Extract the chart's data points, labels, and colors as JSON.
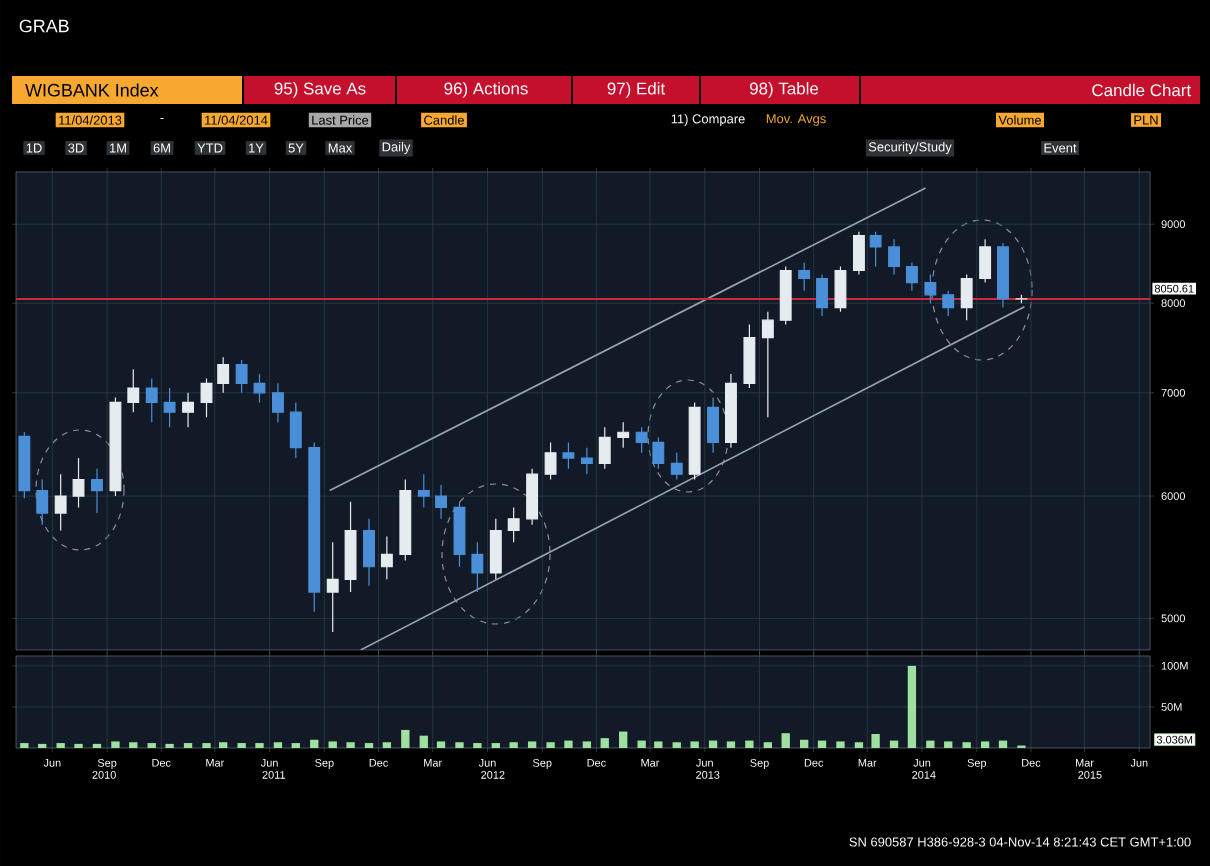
{
  "chart_data": [
    {
      "type": "candlestick",
      "title": "WIGBANK Index",
      "annotations": [
        "GRAB",
        "95) Save As",
        "96) Actions",
        "97) Edit",
        "98) Table",
        "Candle Chart",
        "11/04/2013",
        "-",
        "11/04/2014",
        "Last Price",
        "Candle",
        "11) Compare",
        "Mov. Avgs",
        "Volume",
        "PLN",
        "1D",
        "3D",
        "1M",
        "6M",
        "YTD",
        "1Y",
        "5Y",
        "Max",
        "Daily",
        "Security/Study",
        "Event",
        "SN 690587 H386-928-3 04-Nov-14  8:21:43 CET  GMT+1:00"
      ],
      "x": [
        "2010-04-15",
        "2010-05-15",
        "2010-06-15",
        "2010-07-15",
        "2010-08-15",
        "2010-09-15",
        "2010-10-15",
        "2010-11-15",
        "2010-12-15",
        "2011-01-15",
        "2011-02-15",
        "2011-03-15",
        "2011-04-15",
        "2011-05-15",
        "2011-06-15",
        "2011-07-15",
        "2011-08-15",
        "2011-09-15",
        "2011-10-15",
        "2011-11-15",
        "2011-12-15",
        "2012-01-15",
        "2012-02-15",
        "2012-03-15",
        "2012-04-15",
        "2012-05-15",
        "2012-06-15",
        "2012-07-15",
        "2012-08-15",
        "2012-09-15",
        "2012-10-15",
        "2012-11-15",
        "2012-12-15",
        "2013-01-15",
        "2013-02-15",
        "2013-03-15",
        "2013-04-15",
        "2013-05-15",
        "2013-06-15",
        "2013-07-15",
        "2013-08-15",
        "2013-09-15",
        "2013-10-15",
        "2013-11-15",
        "2013-12-15",
        "2014-01-15",
        "2014-02-15",
        "2014-03-15",
        "2014-04-15",
        "2014-05-15",
        "2014-06-15",
        "2014-07-15",
        "2014-08-15",
        "2014-09-15",
        "2014-10-15",
        "2014-11-15"
      ],
      "ohlc": [
        [
          6560,
          6600,
          5980,
          6050
        ],
        [
          6050,
          6150,
          5750,
          5850
        ],
        [
          5850,
          6200,
          5700,
          6000
        ],
        [
          6000,
          6350,
          5900,
          6150
        ],
        [
          6150,
          6250,
          5850,
          6050
        ],
        [
          6050,
          6950,
          6000,
          6900
        ],
        [
          6900,
          7250,
          6800,
          7050
        ],
        [
          7050,
          7150,
          6700,
          6900
        ],
        [
          6900,
          7050,
          6650,
          6800
        ],
        [
          6800,
          7000,
          6650,
          6900
        ],
        [
          6900,
          7150,
          6750,
          7100
        ],
        [
          7100,
          7380,
          7000,
          7300
        ],
        [
          7300,
          7350,
          7000,
          7100
        ],
        [
          7100,
          7200,
          6900,
          7000
        ],
        [
          7000,
          7100,
          6700,
          6800
        ],
        [
          6800,
          6900,
          6350,
          6450
        ],
        [
          6450,
          6500,
          5050,
          5200
        ],
        [
          5200,
          5600,
          4900,
          5300
        ],
        [
          5300,
          5950,
          5200,
          5700
        ],
        [
          5700,
          5800,
          5250,
          5400
        ],
        [
          5400,
          5650,
          5300,
          5500
        ],
        [
          5500,
          6150,
          5450,
          6050
        ],
        [
          6050,
          6200,
          5900,
          6000
        ],
        [
          6000,
          6100,
          5800,
          5900
        ],
        [
          5900,
          5950,
          5400,
          5500
        ],
        [
          5500,
          5600,
          5200,
          5350
        ],
        [
          5350,
          5800,
          5300,
          5700
        ],
        [
          5700,
          5900,
          5600,
          5800
        ],
        [
          5800,
          6250,
          5750,
          6200
        ],
        [
          6200,
          6500,
          6150,
          6400
        ],
        [
          6400,
          6500,
          6250,
          6350
        ],
        [
          6350,
          6450,
          6200,
          6300
        ],
        [
          6300,
          6650,
          6250,
          6550
        ],
        [
          6550,
          6700,
          6450,
          6600
        ],
        [
          6600,
          6650,
          6400,
          6500
        ],
        [
          6500,
          6550,
          6250,
          6300
        ],
        [
          6300,
          6400,
          6150,
          6200
        ],
        [
          6200,
          6900,
          6150,
          6850
        ],
        [
          6850,
          6950,
          6400,
          6500
        ],
        [
          6500,
          7200,
          6450,
          7100
        ],
        [
          7100,
          7750,
          7050,
          7600
        ],
        [
          7600,
          7900,
          6750,
          7800
        ],
        [
          7800,
          8450,
          7750,
          8400
        ],
        [
          8400,
          8500,
          8150,
          8300
        ],
        [
          8300,
          8350,
          7850,
          7950
        ],
        [
          7950,
          8450,
          7900,
          8400
        ],
        [
          8400,
          8900,
          8350,
          8850
        ],
        [
          8850,
          8900,
          8450,
          8700
        ],
        [
          8700,
          8800,
          8350,
          8450
        ],
        [
          8450,
          8500,
          8150,
          8250
        ],
        [
          8250,
          8350,
          8000,
          8100
        ],
        [
          8100,
          8150,
          7850,
          7950
        ],
        [
          7950,
          8350,
          7800,
          8300
        ],
        [
          8300,
          8800,
          8250,
          8700
        ],
        [
          8700,
          8750,
          7950,
          8050
        ],
        [
          8050,
          8100,
          8000,
          8050.61
        ]
      ],
      "colors": [
        "#4a8fd8",
        "#4a8fd8",
        "#e6ebf0",
        "#e6ebf0",
        "#4a8fd8",
        "#e6ebf0",
        "#e6ebf0",
        "#4a8fd8",
        "#4a8fd8",
        "#e6ebf0",
        "#e6ebf0",
        "#e6ebf0",
        "#4a8fd8",
        "#4a8fd8",
        "#4a8fd8",
        "#4a8fd8",
        "#4a8fd8",
        "#e6ebf0",
        "#e6ebf0",
        "#4a8fd8",
        "#e6ebf0",
        "#e6ebf0",
        "#4a8fd8",
        "#4a8fd8",
        "#4a8fd8",
        "#4a8fd8",
        "#e6ebf0",
        "#e6ebf0",
        "#e6ebf0",
        "#e6ebf0",
        "#4a8fd8",
        "#4a8fd8",
        "#e6ebf0",
        "#e6ebf0",
        "#4a8fd8",
        "#4a8fd8",
        "#4a8fd8",
        "#e6ebf0",
        "#4a8fd8",
        "#e6ebf0",
        "#e6ebf0",
        "#e6ebf0",
        "#e6ebf0",
        "#4a8fd8",
        "#4a8fd8",
        "#e6ebf0",
        "#e6ebf0",
        "#4a8fd8",
        "#4a8fd8",
        "#4a8fd8",
        "#4a8fd8",
        "#4a8fd8",
        "#e6ebf0",
        "#e6ebf0",
        "#4a8fd8",
        "#e6ebf0"
      ],
      "series": [
        {
          "type": "line",
          "color": "#9aa3ad",
          "x": [
            "2011-09-10",
            "2014-06-07"
          ],
          "values": [
            6050,
            9500
          ]
        },
        {
          "type": "line",
          "color": "#9aa3ad",
          "x": [
            "2011-11-01",
            "2014-11-20"
          ],
          "values": [
            4770,
            7960
          ]
        }
      ],
      "ref_lines": [
        {
          "axis": "y",
          "value": 8050.61,
          "label": "8050.61",
          "color": "#d0283c"
        }
      ],
      "log": true,
      "grid": true,
      "tick_labels": "y",
      "xlim": [
        "2010-04-01",
        "2015-06-19"
      ],
      "ylim": [
        4770,
        9730
      ],
      "xticks": [
        {
          "value": "2010-06-01",
          "label": null
        },
        {
          "value": "2010-09-01",
          "label": null
        },
        {
          "value": "2010-12-01",
          "label": null
        },
        {
          "value": "2011-03-01",
          "label": null
        },
        {
          "value": "2011-06-01",
          "label": null
        },
        {
          "value": "2011-09-01",
          "label": null
        },
        {
          "value": "2011-12-01",
          "label": null
        },
        {
          "value": "2012-03-01",
          "label": null
        },
        {
          "value": "2012-06-01",
          "label": null
        },
        {
          "value": "2012-09-01",
          "label": null
        },
        {
          "value": "2012-12-01",
          "label": null
        },
        {
          "value": "2013-03-01",
          "label": null
        },
        {
          "value": "2013-06-01",
          "label": null
        },
        {
          "value": "2013-09-01",
          "label": null
        },
        {
          "value": "2013-12-01",
          "label": null
        },
        {
          "value": "2014-03-01",
          "label": null
        },
        {
          "value": "2014-06-01",
          "label": null
        },
        {
          "value": "2014-09-01",
          "label": null
        },
        {
          "value": "2014-12-01",
          "label": null
        },
        {
          "value": "2015-03-01",
          "label": null
        },
        {
          "value": "2015-06-01",
          "label": null
        }
      ],
      "yticks": [
        5000,
        6000,
        7000,
        8000,
        9000
      ]
    },
    {
      "type": "bar",
      "x": [
        "2010-04-15",
        "2010-05-15",
        "2010-06-15",
        "2010-07-15",
        "2010-08-15",
        "2010-09-15",
        "2010-10-15",
        "2010-11-15",
        "2010-12-15",
        "2011-01-15",
        "2011-02-15",
        "2011-03-15",
        "2011-04-15",
        "2011-05-15",
        "2011-06-15",
        "2011-07-15",
        "2011-08-15",
        "2011-09-15",
        "2011-10-15",
        "2011-11-15",
        "2011-12-15",
        "2012-01-15",
        "2012-02-15",
        "2012-03-15",
        "2012-04-15",
        "2012-05-15",
        "2012-06-15",
        "2012-07-15",
        "2012-08-15",
        "2012-09-15",
        "2012-10-15",
        "2012-11-15",
        "2012-12-15",
        "2013-01-15",
        "2013-02-15",
        "2013-03-15",
        "2013-04-15",
        "2013-05-15",
        "2013-06-15",
        "2013-07-15",
        "2013-08-15",
        "2013-09-15",
        "2013-10-15",
        "2013-11-15",
        "2013-12-15",
        "2014-01-15",
        "2014-02-15",
        "2014-03-15",
        "2014-04-15",
        "2014-05-15",
        "2014-06-15",
        "2014-07-15",
        "2014-08-15",
        "2014-09-15",
        "2014-10-15",
        "2014-11-15"
      ],
      "values": [
        6,
        5,
        6,
        5,
        5,
        8,
        7,
        6,
        5,
        6,
        6,
        7,
        6,
        6,
        7,
        6,
        10,
        8,
        7,
        6,
        7,
        22,
        15,
        8,
        7,
        6,
        6,
        7,
        8,
        7,
        9,
        8,
        12,
        20,
        9,
        8,
        7,
        8,
        9,
        8,
        9,
        7,
        18,
        10,
        9,
        8,
        7,
        17,
        9,
        100,
        9,
        8,
        7,
        8,
        9,
        3
      ],
      "color": "#9fe0a0",
      "annotations": [
        "3.036M"
      ],
      "x2lim": [
        "2010-04-01",
        "2015-06-19"
      ],
      "grid": true,
      "xlim": [
        "2010-04-01",
        "2015-06-19"
      ],
      "ylim": [
        0,
        112
      ],
      "xticks": [
        {
          "value": "2010-06-01",
          "label": "Jun"
        },
        {
          "value": "2010-09-01",
          "label": "Sep"
        },
        {
          "value": "2010-12-01",
          "label": "Dec"
        },
        {
          "value": "2011-03-01",
          "label": "Mar"
        },
        {
          "value": "2011-06-01",
          "label": "Jun"
        },
        {
          "value": "2011-09-01",
          "label": "Sep"
        },
        {
          "value": "2011-12-01",
          "label": "Dec"
        },
        {
          "value": "2012-03-01",
          "label": "Mar"
        },
        {
          "value": "2012-06-01",
          "label": "Jun"
        },
        {
          "value": "2012-09-01",
          "label": "Sep"
        },
        {
          "value": "2012-12-01",
          "label": "Dec"
        },
        {
          "value": "2013-03-01",
          "label": "Mar"
        },
        {
          "value": "2013-06-01",
          "label": "Jun"
        },
        {
          "value": "2013-09-01",
          "label": "Sep"
        },
        {
          "value": "2013-12-01",
          "label": "Dec"
        },
        {
          "value": "2014-03-01",
          "label": "Mar"
        },
        {
          "value": "2014-06-01",
          "label": "Jun"
        },
        {
          "value": "2014-09-01",
          "label": "Sep"
        },
        {
          "value": "2014-12-01",
          "label": "Dec"
        },
        {
          "value": "2015-03-01",
          "label": "Mar"
        },
        {
          "value": "2015-06-01",
          "label": "Jun"
        }
      ],
      "x2ticks": [
        {
          "value": "2010-08-27",
          "label": "2010"
        },
        {
          "value": "2011-06-08",
          "label": "2011"
        },
        {
          "value": "2012-06-10",
          "label": "2012"
        },
        {
          "value": "2013-06-06",
          "label": "2013"
        },
        {
          "value": "2014-06-04",
          "label": "2014"
        },
        {
          "value": "2015-03-10",
          "label": "2015"
        }
      ],
      "yticks": [
        {
          "value": 50,
          "label": "50M"
        },
        {
          "value": 100,
          "label": "100M"
        }
      ]
    }
  ]
}
